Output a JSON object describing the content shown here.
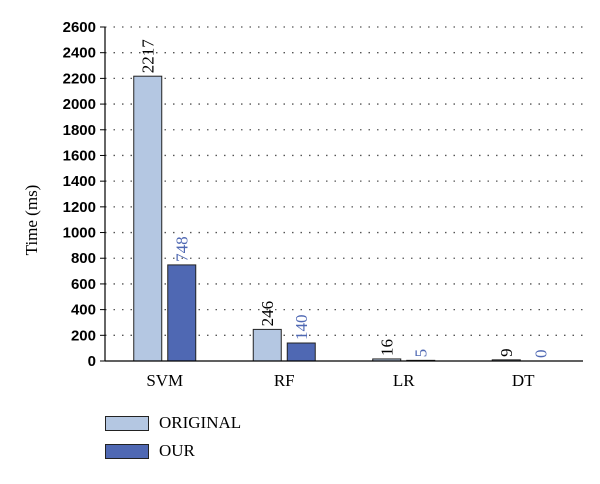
{
  "chart_data": {
    "type": "bar",
    "categories": [
      "SVM",
      "RF",
      "LR",
      "DT"
    ],
    "series": [
      {
        "name": "ORIGINAL",
        "values": [
          2217,
          246,
          16,
          9
        ],
        "color": "#b4c7e2",
        "label_color": "#000000"
      },
      {
        "name": "OUR",
        "values": [
          748,
          140,
          5,
          0
        ],
        "color": "#4f68b3",
        "label_color": "#4f68b3"
      }
    ],
    "ylabel": "Time (ms)",
    "xlabel": "",
    "title": "",
    "ylim": [
      0,
      2600
    ],
    "yticks": [
      0,
      200,
      400,
      600,
      800,
      1000,
      1200,
      1400,
      1600,
      1800,
      2000,
      2200,
      2400,
      2600
    ],
    "grid": "dotted",
    "legend_position": "bottom-left"
  }
}
